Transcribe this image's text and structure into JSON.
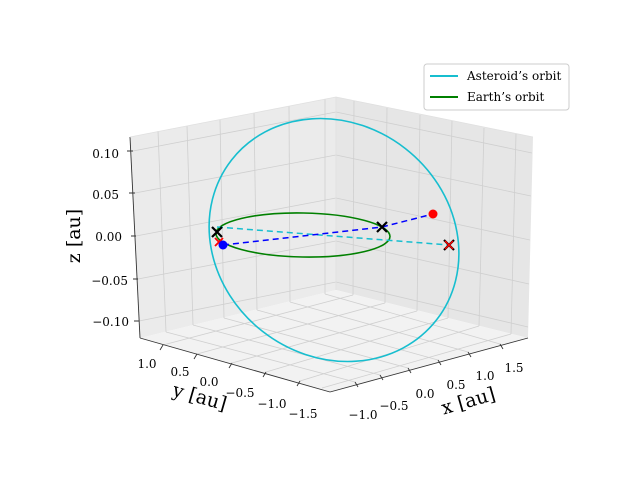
{
  "chart_data": {
    "type": "line3d",
    "title": "",
    "xlabel": "x [au]",
    "ylabel": "y [au]",
    "zlabel": "z [au]",
    "xlim": [
      -1.1,
      1.7
    ],
    "ylim": [
      -1.6,
      1.4
    ],
    "zlim": [
      -0.12,
      0.12
    ],
    "x_ticks": [
      "−1.0",
      "−0.5",
      "0.0",
      "0.5",
      "1.0",
      "1.5"
    ],
    "y_ticks": [
      "1.0",
      "0.5",
      "0.0",
      "−0.5",
      "−1.0",
      "−1.5"
    ],
    "z_ticks": [
      "0.10",
      "0.05",
      "0.00",
      "−0.05",
      "−0.10"
    ],
    "grid": true,
    "legend": {
      "location": "top-right",
      "entries": [
        {
          "label": "Asteroid’s orbit",
          "color": "#17becf"
        },
        {
          "label": "Earth’s orbit",
          "color": "#008000"
        }
      ]
    },
    "series": [
      {
        "name": "Asteroid’s orbit",
        "color": "#17becf",
        "style": "solid",
        "shape": "tilted ellipse",
        "z_range": [
          -0.1,
          0.1
        ]
      },
      {
        "name": "Earth’s orbit",
        "color": "#008000",
        "style": "solid",
        "shape": "circle",
        "radius": 1.0,
        "z": 0.0
      },
      {
        "name": "asteroid line of nodes",
        "color": "#17becf",
        "style": "dashed",
        "z": 0.0
      },
      {
        "name": "asteroid-Earth connecting line",
        "color": "#0000ff",
        "style": "dashed"
      }
    ],
    "markers": [
      {
        "label": "node crossing 1",
        "symbol": "x",
        "color": "#000000"
      },
      {
        "label": "node crossing 2",
        "symbol": "x",
        "color": "#000000"
      },
      {
        "label": "Earth position",
        "symbol": "x",
        "color": "#000000"
      },
      {
        "label": "asteroid position 1",
        "symbol": "o",
        "color": "#ff0000"
      },
      {
        "label": "asteroid position 2",
        "symbol": "o",
        "color": "#0000ff"
      },
      {
        "label": "point",
        "symbol": "x",
        "color": "#ff0000"
      }
    ]
  }
}
